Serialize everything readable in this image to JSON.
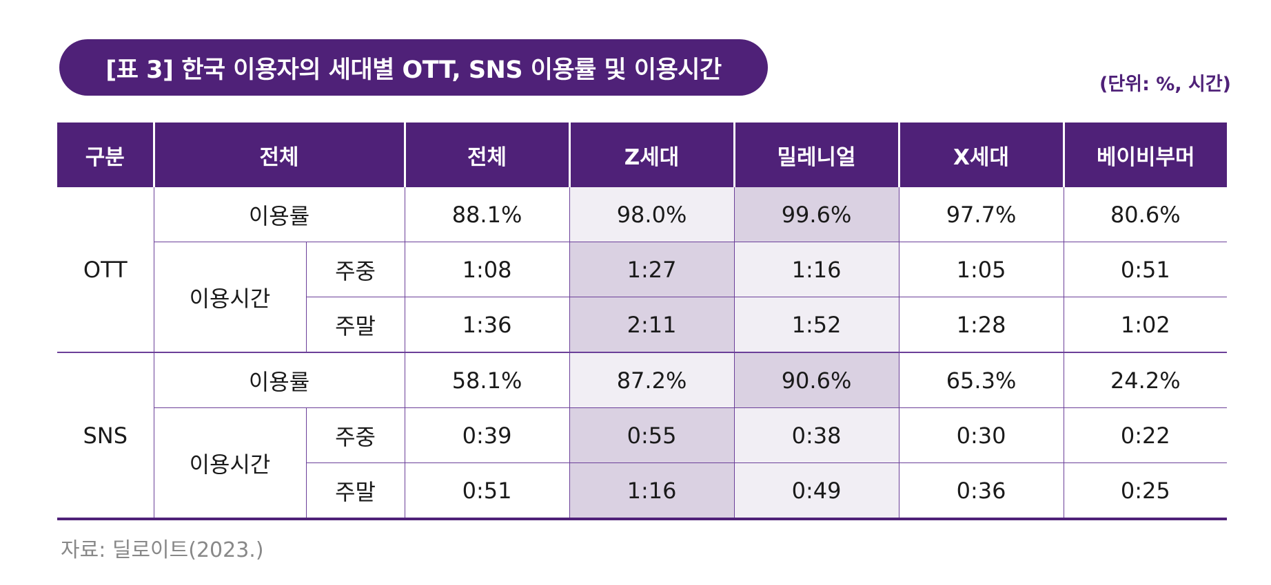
{
  "title": "[표 3] 한국 이용자의 세대별 OTT, SNS 이용률 및 이용시간",
  "unit": "(단위: %, 시간)",
  "header": {
    "category": "구분",
    "total_span": "전체",
    "total": "전체",
    "gen_z": "Z세대",
    "millennial": "밀레니얼",
    "gen_x": "X세대",
    "boomer": "베이비부머"
  },
  "sections": [
    {
      "name": "OTT",
      "rate_label": "이용률",
      "time_label": "이용시간",
      "weekday_label": "주중",
      "weekend_label": "주말",
      "rate": [
        "88.1%",
        "98.0%",
        "99.6%",
        "97.7%",
        "80.6%"
      ],
      "weekday": [
        "1:08",
        "1:27",
        "1:16",
        "1:05",
        "0:51"
      ],
      "weekend": [
        "1:36",
        "2:11",
        "1:52",
        "1:28",
        "1:02"
      ]
    },
    {
      "name": "SNS",
      "rate_label": "이용률",
      "time_label": "이용시간",
      "weekday_label": "주중",
      "weekend_label": "주말",
      "rate": [
        "58.1%",
        "87.2%",
        "90.6%",
        "65.3%",
        "24.2%"
      ],
      "weekday": [
        "0:39",
        "0:55",
        "0:38",
        "0:30",
        "0:22"
      ],
      "weekend": [
        "0:51",
        "1:16",
        "0:49",
        "0:36",
        "0:25"
      ]
    }
  ],
  "source": "자료: 딜로이트(2023.)",
  "colors": {
    "accent": "#4f2178",
    "highlight_light": "#f1eef4",
    "highlight_dark": "#dad1e2",
    "border": "#6a3e98"
  }
}
